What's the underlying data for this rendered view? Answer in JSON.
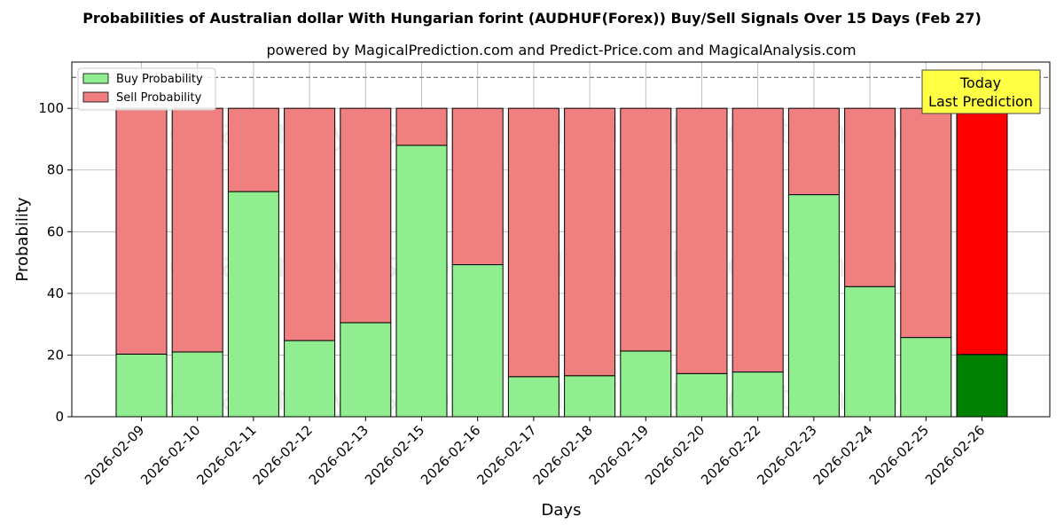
{
  "chart_data": {
    "type": "bar",
    "stacked": true,
    "title": "Probabilities of Australian dollar With Hungarian forint (AUDHUF(Forex)) Buy/Sell Signals Over 15 Days (Feb 27)",
    "subtitle": "powered by MagicalPrediction.com and Predict-Price.com and MagicalAnalysis.com",
    "xlabel": "Days",
    "ylabel": "Probability",
    "ylim": [
      0,
      115
    ],
    "yticks": [
      0,
      20,
      40,
      60,
      80,
      100
    ],
    "reference_line": 110,
    "grid": true,
    "legend_position": "top-left",
    "categories": [
      "2026-02-09",
      "2026-02-10",
      "2026-02-11",
      "2026-02-12",
      "2026-02-13",
      "2026-02-15",
      "2026-02-16",
      "2026-02-17",
      "2026-02-18",
      "2026-02-19",
      "2026-02-20",
      "2026-02-22",
      "2026-02-23",
      "2026-02-24",
      "2026-02-25",
      "2026-02-26"
    ],
    "series": [
      {
        "name": "Buy Probability",
        "color": "#90EE90",
        "highlight_color": "#008000",
        "values": [
          20.3,
          21.0,
          73.0,
          24.7,
          30.5,
          88.0,
          49.3,
          13.0,
          13.3,
          21.3,
          14.0,
          14.5,
          72.0,
          42.2,
          25.7,
          20.2
        ]
      },
      {
        "name": "Sell Probability",
        "color": "#F08080",
        "highlight_color": "#FF0000",
        "values": [
          79.7,
          79.0,
          27.0,
          75.3,
          69.5,
          12.0,
          50.7,
          87.0,
          86.7,
          78.7,
          86.0,
          85.5,
          28.0,
          57.8,
          74.3,
          79.8
        ]
      }
    ],
    "highlight_index": 15,
    "annotation": {
      "line1": "Today",
      "line2": "Last Prediction",
      "bg_color": "#FFFF44"
    },
    "watermarks": [
      "MagicalAnalysis.com",
      "MagicalPrediction.com"
    ]
  }
}
